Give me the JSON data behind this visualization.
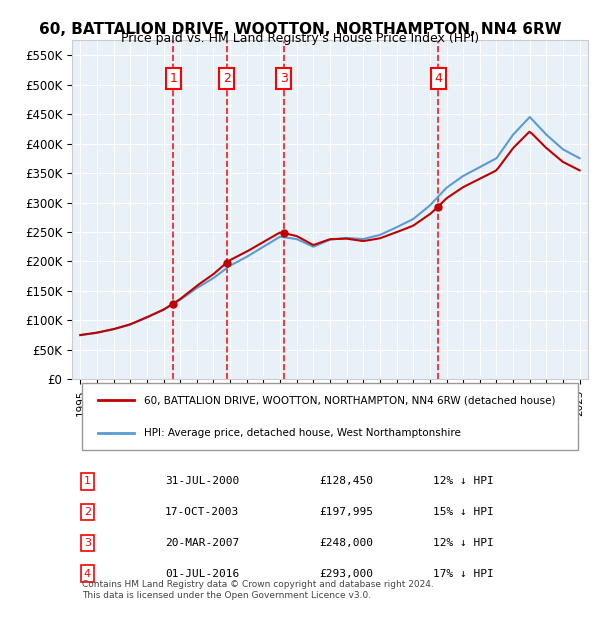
{
  "title": "60, BATTALION DRIVE, WOOTTON, NORTHAMPTON, NN4 6RW",
  "subtitle": "Price paid vs. HM Land Registry's House Price Index (HPI)",
  "ylabel": "",
  "ylim": [
    0,
    575000
  ],
  "yticks": [
    0,
    50000,
    100000,
    150000,
    200000,
    250000,
    300000,
    350000,
    400000,
    450000,
    500000,
    550000
  ],
  "background_color": "#ffffff",
  "plot_bg_color": "#e8f0f8",
  "grid_color": "#ffffff",
  "purchases": [
    {
      "label": "1",
      "date": "31-JUL-2000",
      "price": 128450,
      "pct": "12%",
      "x_year": 2000.58
    },
    {
      "label": "2",
      "date": "17-OCT-2003",
      "price": 197995,
      "pct": "15%",
      "x_year": 2003.79
    },
    {
      "label": "3",
      "date": "20-MAR-2007",
      "price": 248000,
      "pct": "12%",
      "x_year": 2007.22
    },
    {
      "label": "4",
      "date": "01-JUL-2016",
      "price": 293000,
      "pct": "17%",
      "x_year": 2016.5
    }
  ],
  "legend_line1": "60, BATTALION DRIVE, WOOTTON, NORTHAMPTON, NN4 6RW (detached house)",
  "legend_line2": "HPI: Average price, detached house, West Northamptonshire",
  "footer": "Contains HM Land Registry data © Crown copyright and database right 2024.\nThis data is licensed under the Open Government Licence v3.0.",
  "hpi_color": "#5b9bd5",
  "price_color": "#c00000",
  "vline_color": "#ff0000",
  "box_color": "#ff0000",
  "xlim_start": 1994.5,
  "xlim_end": 2025.5,
  "xticks": [
    1995,
    1996,
    1997,
    1998,
    1999,
    2000,
    2001,
    2002,
    2003,
    2004,
    2005,
    2006,
    2007,
    2008,
    2009,
    2010,
    2011,
    2012,
    2013,
    2014,
    2015,
    2016,
    2017,
    2018,
    2019,
    2020,
    2021,
    2022,
    2023,
    2024,
    2025
  ]
}
